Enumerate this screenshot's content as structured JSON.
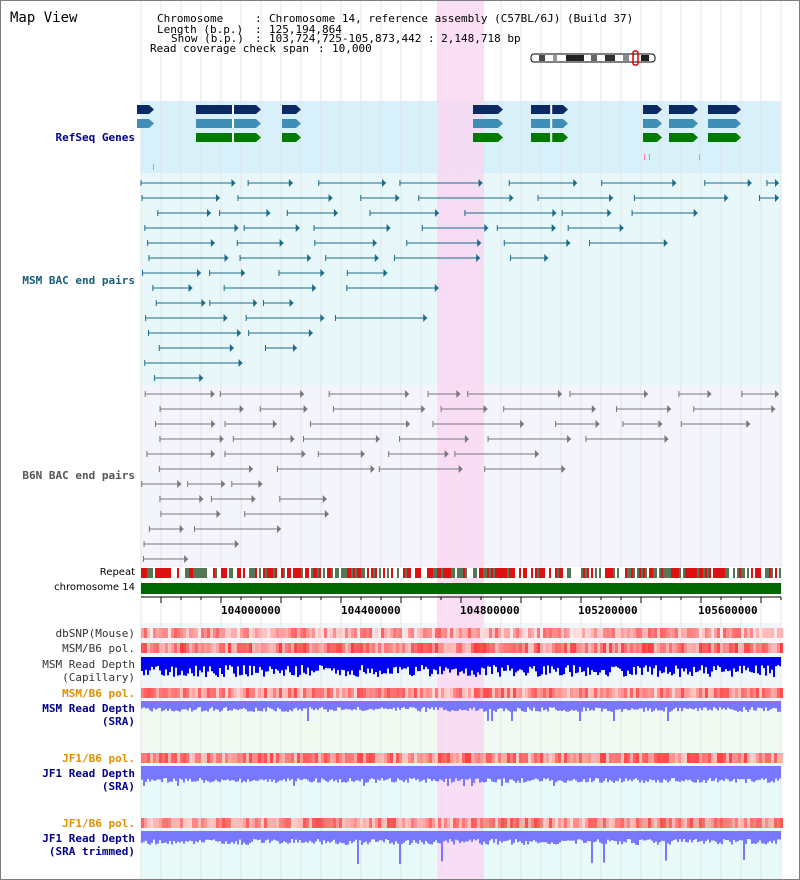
{
  "window": {
    "title": "Map View"
  },
  "header": {
    "chromosome_label": "Chromosome",
    "chromosome_value": "Chromosome 14, reference assembly (C57BL/6J) (Build 37)",
    "length_label": "Length (b.p.)",
    "length_value": "125,194,864",
    "show_label": "Show (b.p.)",
    "show_value": "103,724,725-105,873,442 : 2,148,718 bp",
    "coverage_label": "Read coverage check span",
    "coverage_value": "10,000"
  },
  "tracks": {
    "refseq": "RefSeq Genes",
    "msm_bac": "MSM BAC end pairs",
    "b6n_bac": "B6N BAC end pairs",
    "repeat": "Repeat",
    "chromosome": "chromosome 14",
    "dbsnp": "dbSNP(Mouse)",
    "msm_b6_pol": "MSM/B6 pol.",
    "msm_depth_cap_1": "MSM Read Depth",
    "msm_depth_cap_2": "(Capillary)",
    "msm_b6_pol_sra": "MSM/B6 pol.",
    "msm_depth_sra_1": "MSM Read Depth",
    "msm_depth_sra_2": "(SRA)",
    "jf1_b6_pol": "JF1/B6 pol.",
    "jf1_depth_1": "JF1 Read Depth",
    "jf1_depth_2": "(SRA)",
    "jf1_b6_pol_2": "JF1/B6 pol.",
    "jf1_trim_1": "JF1 Read Depth",
    "jf1_trim_2": "(SRA trimmed)"
  },
  "ruler": {
    "labels": [
      "104000000",
      "104400000",
      "104800000",
      "105200000",
      "105600000"
    ]
  },
  "colors": {
    "refseq_bg": "#d8f0fa",
    "bac_bg": "#e8f8fa",
    "b6n_bg": "#f4f4fc",
    "highlight": "#f9d8f2",
    "msm_bac_line": "#1a6b8a",
    "b6n_bac_line": "#777777",
    "gene_dark": "#0b2a63",
    "gene_mid": "#3f8eb6",
    "gene_green": "#007a00",
    "chrom_bar": "#006600",
    "depth_cap": "#0000ee",
    "depth_sra": "#7777ff",
    "label_blue": "#00008b",
    "label_teal": "#155f7c",
    "label_orange": "#e09000"
  }
}
